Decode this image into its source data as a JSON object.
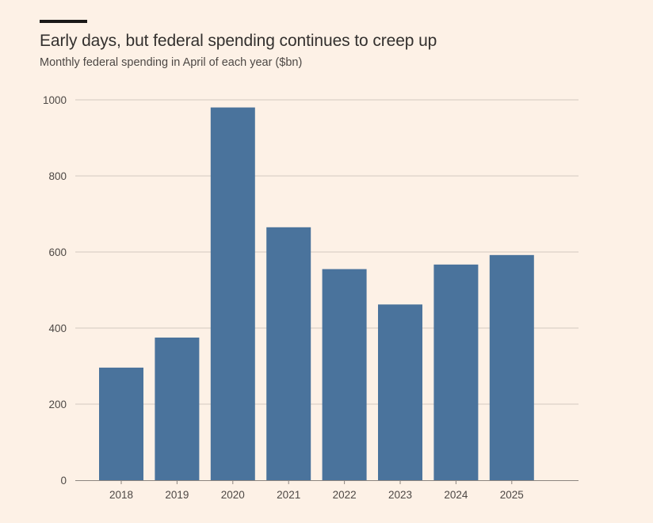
{
  "header": {
    "title": "Early days, but federal spending continues to creep up",
    "subtitle": "Monthly federal spending in April of each year ($bn)"
  },
  "colors": {
    "bar": "#4a739c",
    "grid": "#d2c9c0",
    "axis": "#8c857f",
    "text": "#4d4845"
  },
  "chart_data": {
    "type": "bar",
    "title": "Early days, but federal spending continues to creep up",
    "subtitle": "Monthly federal spending in April of each year ($bn)",
    "categories": [
      "2018",
      "2019",
      "2020",
      "2021",
      "2022",
      "2023",
      "2024",
      "2025"
    ],
    "values": [
      296,
      375,
      980,
      665,
      555,
      462,
      567,
      592
    ],
    "ylim": [
      0,
      1000
    ],
    "yticks": [
      0,
      200,
      400,
      600,
      800,
      1000
    ],
    "xlabel": "",
    "ylabel": "",
    "grid": true,
    "legend": "none"
  }
}
